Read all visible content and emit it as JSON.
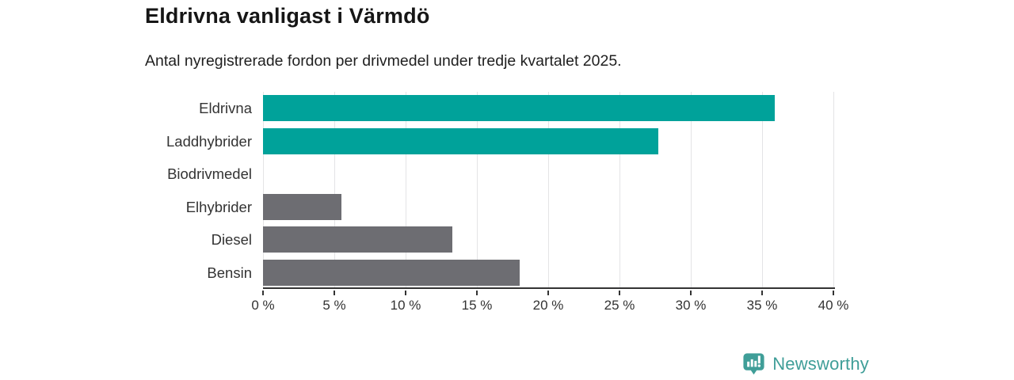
{
  "chart_data": {
    "type": "bar",
    "orientation": "horizontal",
    "title": "Eldrivna vanligast i Värmdö",
    "subtitle": "Antal nyregistrerade fordon per drivmedel under tredje kvartalet 2025.",
    "categories": [
      "Eldrivna",
      "Laddhybrider",
      "Biodrivmedel",
      "Elhybrider",
      "Diesel",
      "Bensin"
    ],
    "values": [
      35.9,
      27.7,
      0,
      5.5,
      13.3,
      18.0
    ],
    "unit": "%",
    "bar_colors": [
      "#00a29a",
      "#00a29a",
      "#00a29a",
      "#6d6d72",
      "#6d6d72",
      "#6d6d72"
    ],
    "xlabel": "",
    "ylabel": "",
    "xlim": [
      0,
      40
    ],
    "x_ticks": [
      0,
      5,
      10,
      15,
      20,
      25,
      30,
      35,
      40
    ],
    "x_tick_labels": [
      "0 %",
      "5 %",
      "10 %",
      "15 %",
      "20 %",
      "25 %",
      "30 %",
      "35 %",
      "40 %"
    ],
    "grid": "vertical-only",
    "legend": "none"
  },
  "colors": {
    "accent_teal": "#00a29a",
    "neutral_gray": "#6d6d72",
    "gridline": "#e4e4e6",
    "axis": "#333333",
    "logo_teal": "#3f9e98"
  },
  "logo": {
    "text": "Newsworthy",
    "icon": "bar-chart-speech-bubble-icon"
  }
}
